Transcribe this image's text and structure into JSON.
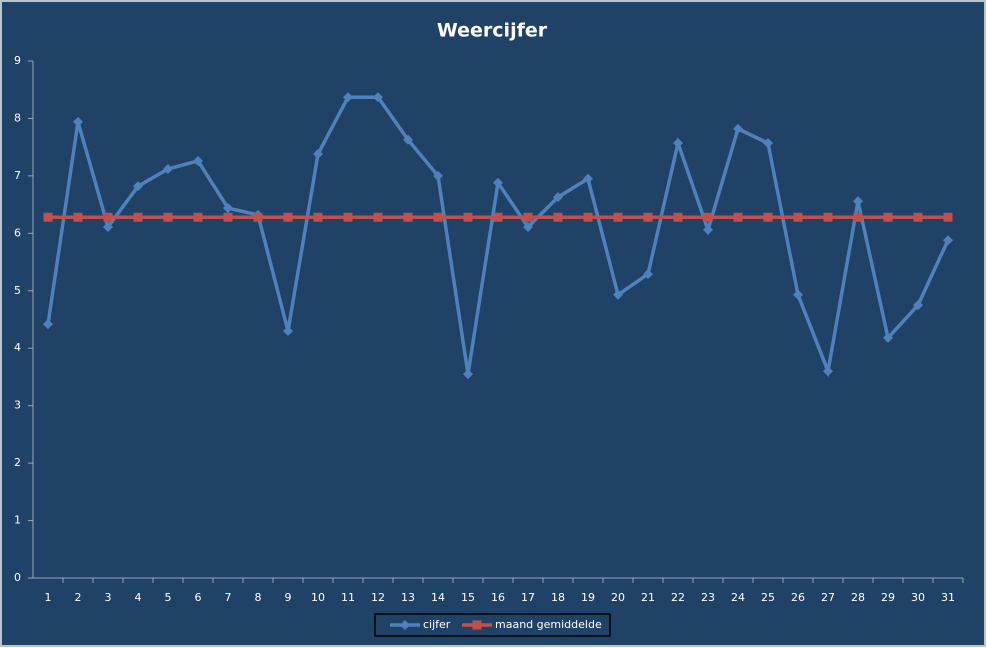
{
  "chart_data": {
    "type": "line",
    "title": "Weercijfer",
    "categories": [
      "1",
      "2",
      "3",
      "4",
      "5",
      "6",
      "7",
      "8",
      "9",
      "10",
      "11",
      "12",
      "13",
      "14",
      "15",
      "16",
      "17",
      "18",
      "19",
      "20",
      "21",
      "22",
      "23",
      "24",
      "25",
      "26",
      "27",
      "28",
      "29",
      "30",
      "31"
    ],
    "series": [
      {
        "name": "cijfer",
        "color": "#4f81bd",
        "marker": "diamond",
        "values": [
          4.42,
          7.94,
          6.11,
          6.82,
          7.12,
          7.26,
          6.44,
          6.32,
          4.3,
          7.38,
          8.37,
          8.37,
          7.63,
          7.0,
          3.55,
          6.88,
          6.11,
          6.63,
          6.95,
          4.93,
          5.29,
          7.57,
          6.06,
          7.82,
          7.57,
          4.93,
          3.6,
          6.56,
          4.18,
          4.75,
          5.88
        ]
      },
      {
        "name": "maand gemiddelde",
        "color": "#c0504d",
        "marker": "square",
        "values": [
          6.28,
          6.28,
          6.28,
          6.28,
          6.28,
          6.28,
          6.28,
          6.28,
          6.28,
          6.28,
          6.28,
          6.28,
          6.28,
          6.28,
          6.28,
          6.28,
          6.28,
          6.28,
          6.28,
          6.28,
          6.28,
          6.28,
          6.28,
          6.28,
          6.28,
          6.28,
          6.28,
          6.28,
          6.28,
          6.28,
          6.28
        ]
      }
    ],
    "ylim": [
      0,
      9
    ],
    "yticks": [
      0,
      1,
      2,
      3,
      4,
      5,
      6,
      7,
      8,
      9
    ],
    "grid": false,
    "legend": "bottom"
  }
}
